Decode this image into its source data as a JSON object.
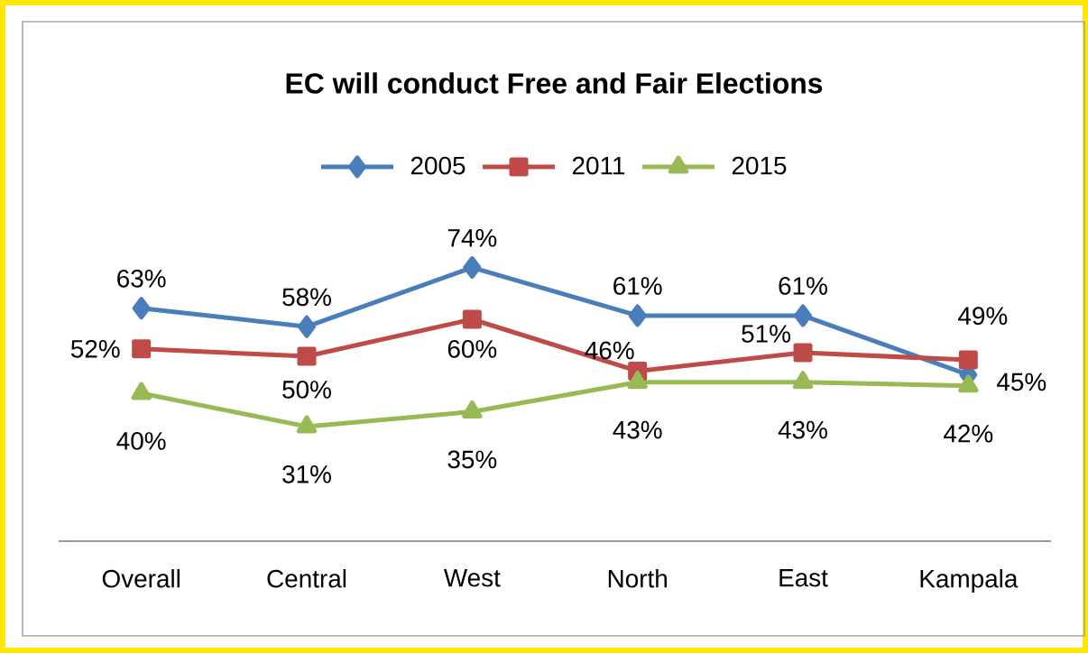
{
  "chart_data": {
    "type": "line",
    "title": "EC will conduct Free and Fair Elections",
    "categories": [
      "Overall",
      "Central",
      "West",
      "North",
      "East",
      "Kampala"
    ],
    "series": [
      {
        "name": "2005",
        "color": "#4a7ebb",
        "marker": "diamond",
        "values": [
          63,
          58,
          74,
          61,
          61,
          45
        ],
        "value_labels": [
          "63%",
          "58%",
          "74%",
          "61%",
          "61%",
          "45%"
        ]
      },
      {
        "name": "2011",
        "color": "#be4b48",
        "marker": "square",
        "values": [
          52,
          50,
          60,
          46,
          51,
          49
        ],
        "value_labels": [
          "52%",
          "50%",
          "60%",
          "46%",
          "51%",
          "49%"
        ]
      },
      {
        "name": "2015",
        "color": "#98b954",
        "marker": "triangle",
        "values": [
          40,
          31,
          35,
          43,
          43,
          42
        ],
        "value_labels": [
          "40%",
          "31%",
          "35%",
          "43%",
          "43%",
          "42%"
        ]
      }
    ],
    "legend": "top",
    "line_style": "solid"
  }
}
